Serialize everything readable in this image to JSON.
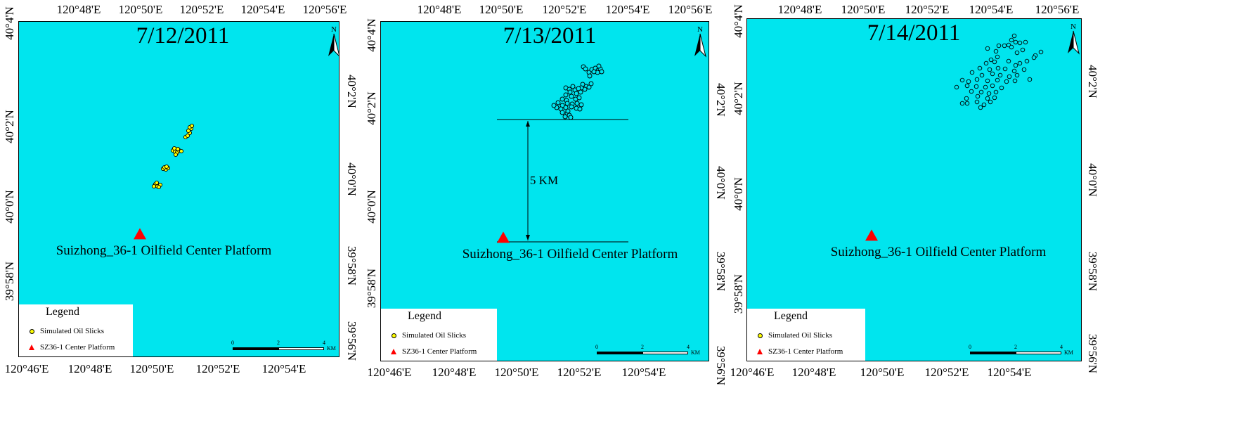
{
  "platform_label": "Suizhong_36-1 Oilfield Center Platform",
  "north_label": "N",
  "legend": {
    "title": "Legend",
    "items": [
      "Simulated Oil Slicks",
      "SZ36-1 Center Platform"
    ]
  },
  "scale": {
    "labels": [
      "0",
      "2",
      "4"
    ],
    "unit": "KM"
  },
  "colors": {
    "sea": "#00e5ee",
    "slick_fill_day1": "#ffff00",
    "slick_fill_other": "#00e5ee",
    "platform": "#ff0000"
  },
  "panels": [
    {
      "date": "7/12/2011",
      "top_ticks": [
        "120°48'E",
        "120°50'E",
        "120°52'E",
        "120°54'E",
        "120°56'E"
      ],
      "bottom_ticks": [
        "120°46'E",
        "120°48'E",
        "120°50'E",
        "120°52'E",
        "120°54'E"
      ],
      "left_ticks": [
        "40°4'N",
        "40°2'N",
        "40°0'N",
        "39°58'N"
      ],
      "right_ticks": [
        "40°2'N",
        "40°0'N",
        "39°58'N",
        "39°56'N"
      ]
    },
    {
      "date": "7/13/2011",
      "annotation": "5 KM",
      "top_ticks": [
        "120°48'E",
        "120°50'E",
        "120°52'E",
        "120°54'E",
        "120°56'E"
      ],
      "bottom_ticks": [
        "120°46'E",
        "120°48'E",
        "120°50'E",
        "120°52'E",
        "120°54'E"
      ],
      "left_ticks": [
        "40°4'N",
        "40°2'N",
        "40°0'N",
        "39°58'N"
      ],
      "right_ticks": [
        "40°2'N",
        "40°0'N",
        "39°58'N",
        "39°56'N"
      ]
    },
    {
      "date": "7/14/2011",
      "top_ticks": [
        "120°48'E",
        "120°50'E",
        "120°52'E",
        "120°54'E",
        "120°56'E"
      ],
      "bottom_ticks": [
        "120°46'E",
        "120°48'E",
        "120°50'E",
        "120°52'E",
        "120°54'E"
      ],
      "left_ticks": [
        "40°4'N",
        "40°2'N",
        "40°0'N",
        "39°58'N"
      ],
      "right_ticks": [
        "40°2'N",
        "40°0'N",
        "39°58'N",
        "39°56'N"
      ]
    }
  ]
}
